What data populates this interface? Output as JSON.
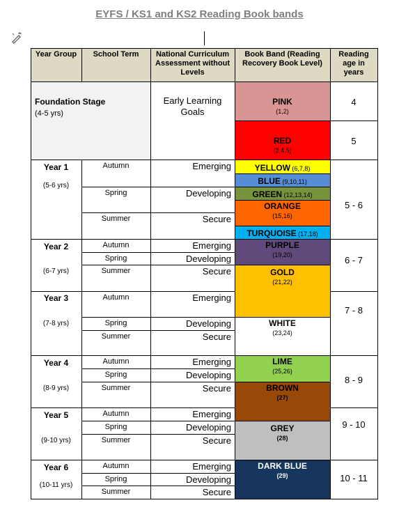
{
  "title": "EYFS / KS1 and KS2 Reading Book bands",
  "table": {
    "headers": [
      "Year Group",
      "School Term",
      "National Curriculum Assessment without Levels",
      "Book Band (Reading Recovery Book Level)",
      "Reading age in years"
    ],
    "foundation": {
      "name": "Foundation Stage",
      "range": "(4-5 yrs)",
      "assessment": "Early Learning Goals"
    },
    "years": [
      {
        "name": "Year 1",
        "range": "(5-6 yrs)",
        "terms": [
          {
            "term": "Autumn",
            "assessment": "Emerging"
          },
          {
            "term": "Spring",
            "assessment": "Developing"
          },
          {
            "term": "Summer",
            "assessment": "Secure"
          }
        ]
      },
      {
        "name": "Year 2",
        "range": "(6-7 yrs)",
        "terms": [
          {
            "term": "Autumn",
            "assessment": "Emerging"
          },
          {
            "term": "Spring",
            "assessment": "Developing"
          },
          {
            "term": "Summer",
            "assessment": "Secure"
          }
        ]
      },
      {
        "name": "Year 3",
        "range": "(7-8 yrs)",
        "terms": [
          {
            "term": "Autumn",
            "assessment": "Emerging"
          },
          {
            "term": "Spring",
            "assessment": "Developing"
          },
          {
            "term": "Summer",
            "assessment": "Secure"
          }
        ]
      },
      {
        "name": "Year 4",
        "range": "(8-9 yrs)",
        "terms": [
          {
            "term": "Autumn",
            "assessment": "Emerging"
          },
          {
            "term": "Spring",
            "assessment": "Developing"
          },
          {
            "term": "Summer",
            "assessment": "Secure"
          }
        ]
      },
      {
        "name": "Year 5",
        "range": "(9-10 yrs)",
        "terms": [
          {
            "term": "Autumn",
            "assessment": "Emerging"
          },
          {
            "term": "Spring",
            "assessment": "Developing"
          },
          {
            "term": "Summer",
            "assessment": "Secure"
          }
        ]
      },
      {
        "name": "Year 6",
        "range": "(10-11 yrs)",
        "terms": [
          {
            "term": "Autumn",
            "assessment": "Emerging"
          },
          {
            "term": "Spring",
            "assessment": "Developing"
          },
          {
            "term": "Summer",
            "assessment": "Secure"
          }
        ]
      }
    ],
    "bands": [
      {
        "name": "PINK",
        "levels": "(1,2)"
      },
      {
        "name": "RED",
        "levels": "(3,4,5)"
      },
      {
        "name": "YELLOW",
        "levels": "(6,7,8)"
      },
      {
        "name": "BLUE",
        "levels": "(9,10,11)"
      },
      {
        "name": "GREEN",
        "levels": "(12,13,14)"
      },
      {
        "name": "ORANGE",
        "levels": "(15,16)"
      },
      {
        "name": "TURQUOISE",
        "levels": "(17,18)"
      },
      {
        "name": "PURPLE",
        "levels": "(19,20)"
      },
      {
        "name": "GOLD",
        "levels": "(21,22)"
      },
      {
        "name": "WHITE",
        "levels": "(23,24)"
      },
      {
        "name": "LIME",
        "levels": "(25,26)"
      },
      {
        "name": "BROWN",
        "levels": "(27)"
      },
      {
        "name": "GREY",
        "levels": "(28)"
      },
      {
        "name": "DARK BLUE",
        "levels": "(29)"
      }
    ],
    "reading_ages": [
      "4",
      "5",
      "5 - 6",
      "6 - 7",
      "7 - 8",
      "8 - 9",
      "9 - 10",
      "10 - 11"
    ]
  }
}
